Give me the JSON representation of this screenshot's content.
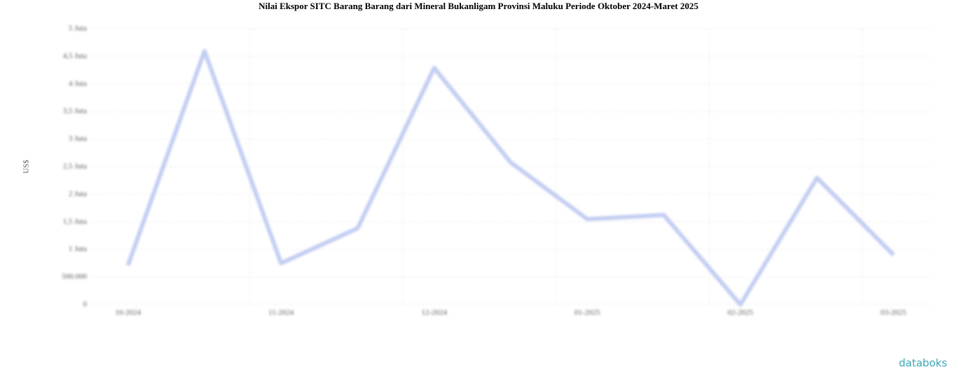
{
  "chart_data": {
    "type": "line",
    "title": "Nilai Ekspor SITC Barang Barang dari Mineral Bukanligam Provinsi Maluku Periode Oktober 2024-Maret 2025",
    "y_label": "US$",
    "categories": [
      "10-2024",
      null,
      "11-2024",
      null,
      "12-2024",
      null,
      "01-2025",
      null,
      "02-2025",
      null,
      "03-2025"
    ],
    "series": [
      {
        "name": "Nilai Ekspor",
        "color": "#c3cdf2",
        "values": [
          711000,
          4594000,
          749000,
          1383000,
          4289000,
          2576000,
          1548000,
          1624000,
          0,
          2297000,
          901000
        ]
      }
    ],
    "ylim": [
      0,
      5000000
    ],
    "yticks": [
      0,
      {
        "value": 500000,
        "label": "500.000"
      },
      {
        "value": 1000000,
        "label": "1 Juta"
      },
      {
        "value": 1500000,
        "label": "1,5 Juta"
      },
      {
        "value": 2000000,
        "label": "2 Juta"
      },
      {
        "value": 2500000,
        "label": "2,5 Juta"
      },
      {
        "value": 3000000,
        "label": "3 Juta"
      },
      {
        "value": 3500000,
        "label": "3,5 Juta"
      },
      {
        "value": 4000000,
        "label": "4 Juta"
      },
      {
        "value": 4500000,
        "label": "4,5 Juta"
      },
      {
        "value": 5000000,
        "label": "5 Juta"
      }
    ],
    "grid": true,
    "brand": "databoks"
  }
}
